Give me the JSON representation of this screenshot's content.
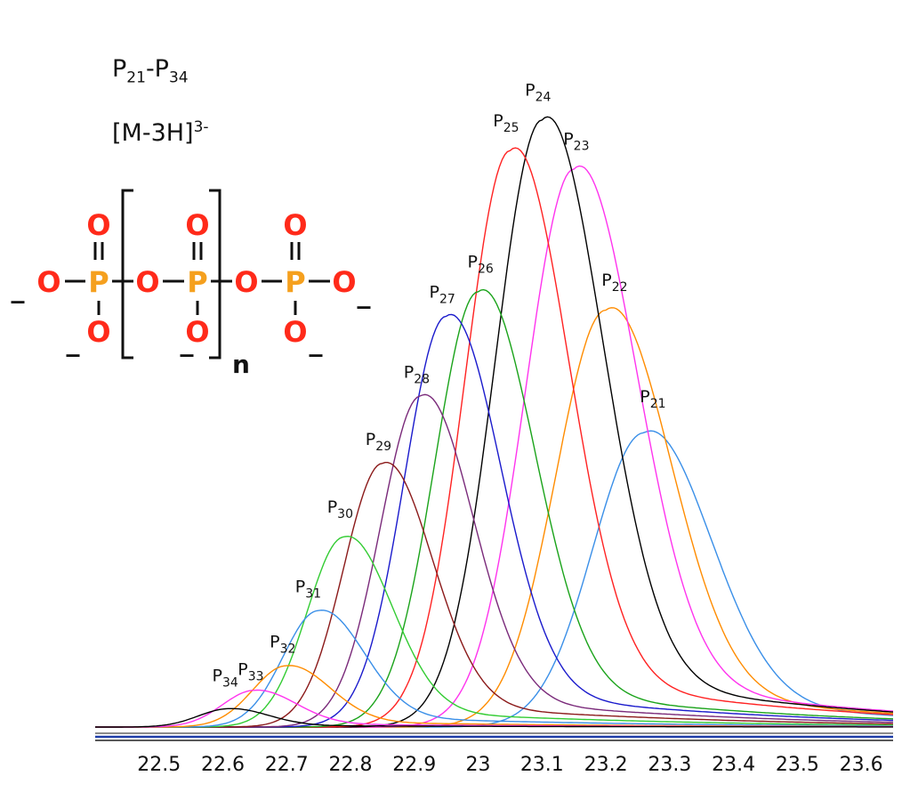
{
  "header": {
    "range_main1": "P",
    "range_sub1": "21",
    "range_dash": "-P",
    "range_sub2": "34",
    "ion_main": "[M-3H]",
    "ion_sup": "3-"
  },
  "structure": {
    "oxygen": "O",
    "phosphorus": "P",
    "repeat": "n",
    "charge": "_",
    "atom_color": "#ff2a1a",
    "p_color": "#f5a01e"
  },
  "chart_data": {
    "type": "line",
    "title": "",
    "xlabel": "",
    "ylabel": "",
    "xlim": [
      22.4,
      23.65
    ],
    "ylim": [
      0,
      1.0
    ],
    "ticks": [
      "22.5",
      "22.6",
      "22.7",
      "22.8",
      "22.9",
      "23",
      "23.1",
      "23.2",
      "23.3",
      "23.4",
      "23.5",
      "23.6"
    ],
    "tick_values": [
      22.5,
      22.6,
      22.7,
      22.8,
      22.9,
      23.0,
      23.1,
      23.2,
      23.3,
      23.4,
      23.5,
      23.6
    ],
    "series": [
      {
        "name": "P",
        "sub": "21",
        "peak_x": 23.26,
        "peak_y": 0.48,
        "color": "#3a8fe8",
        "label_x": 23.27,
        "label_y": 0.53
      },
      {
        "name": "P",
        "sub": "22",
        "peak_x": 23.2,
        "peak_y": 0.68,
        "color": "#ff8c00",
        "label_x": 23.21,
        "label_y": 0.72
      },
      {
        "name": "P",
        "sub": "23",
        "peak_x": 23.15,
        "peak_y": 0.91,
        "color": "#ff33ee",
        "label_x": 23.15,
        "label_y": 0.95
      },
      {
        "name": "P",
        "sub": "24",
        "peak_x": 23.1,
        "peak_y": 0.99,
        "color": "#000000",
        "label_x": 23.09,
        "label_y": 1.03
      },
      {
        "name": "P",
        "sub": "25",
        "peak_x": 23.05,
        "peak_y": 0.94,
        "color": "#ff2222",
        "label_x": 23.04,
        "label_y": 0.98
      },
      {
        "name": "P",
        "sub": "26",
        "peak_x": 23.0,
        "peak_y": 0.71,
        "color": "#1aa31a",
        "label_x": 23.0,
        "label_y": 0.75
      },
      {
        "name": "P",
        "sub": "27",
        "peak_x": 22.95,
        "peak_y": 0.67,
        "color": "#1a1acc",
        "label_x": 22.94,
        "label_y": 0.7
      },
      {
        "name": "P",
        "sub": "28",
        "peak_x": 22.91,
        "peak_y": 0.54,
        "color": "#7a2a7a",
        "label_x": 22.9,
        "label_y": 0.57
      },
      {
        "name": "P",
        "sub": "29",
        "peak_x": 22.85,
        "peak_y": 0.43,
        "color": "#8b1a1a",
        "label_x": 22.84,
        "label_y": 0.46
      },
      {
        "name": "P",
        "sub": "30",
        "peak_x": 22.79,
        "peak_y": 0.31,
        "color": "#33cc33",
        "label_x": 22.78,
        "label_y": 0.35
      },
      {
        "name": "P",
        "sub": "31",
        "peak_x": 22.75,
        "peak_y": 0.19,
        "color": "#3a8fe8",
        "label_x": 22.73,
        "label_y": 0.22
      },
      {
        "name": "P",
        "sub": "32",
        "peak_x": 22.7,
        "peak_y": 0.1,
        "color": "#ff8c00",
        "label_x": 22.69,
        "label_y": 0.13
      },
      {
        "name": "P",
        "sub": "33",
        "peak_x": 22.65,
        "peak_y": 0.06,
        "color": "#ff33ee",
        "label_x": 22.64,
        "label_y": 0.085
      },
      {
        "name": "P",
        "sub": "34",
        "peak_x": 22.61,
        "peak_y": 0.03,
        "color": "#000000",
        "label_x": 22.6,
        "label_y": 0.075
      }
    ]
  }
}
